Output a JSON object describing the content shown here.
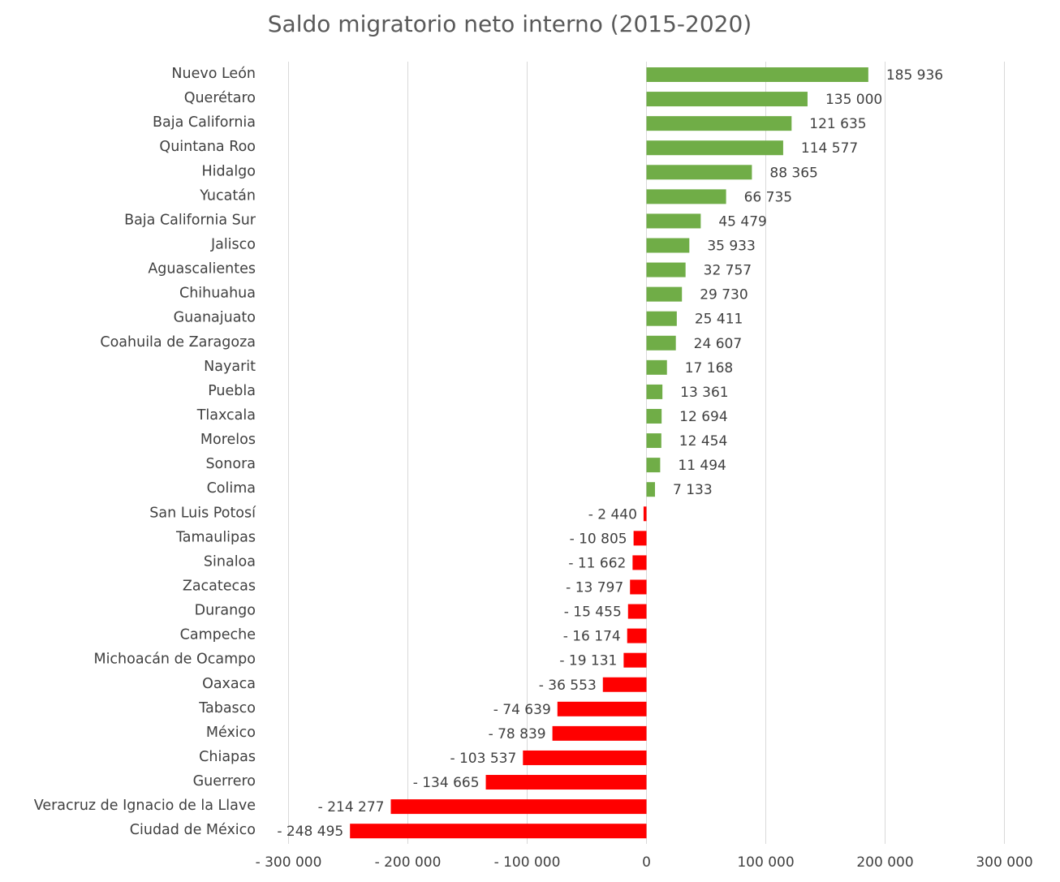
{
  "chart_data": {
    "type": "bar",
    "orientation": "horizontal",
    "title": "Saldo migratorio neto interno (2015-2020)",
    "xlabel": "",
    "ylabel": "",
    "xlim": [
      -300000,
      300000
    ],
    "grid": true,
    "legend": "none",
    "colors": {
      "positive": "#70ad47",
      "negative": "#ff0000"
    },
    "categories": [
      "Nuevo León",
      "Querétaro",
      "Baja California",
      "Quintana Roo",
      "Hidalgo",
      "Yucatán",
      "Baja California Sur",
      "Jalisco",
      "Aguascalientes",
      "Chihuahua",
      "Guanajuato",
      "Coahuila de Zaragoza",
      "Nayarit",
      "Puebla",
      "Tlaxcala",
      "Morelos",
      "Sonora",
      "Colima",
      "San Luis Potosí",
      "Tamaulipas",
      "Sinaloa",
      "Zacatecas",
      "Durango",
      "Campeche",
      "Michoacán de Ocampo",
      "Oaxaca",
      "Tabasco",
      "México",
      "Chiapas",
      "Guerrero",
      "Veracruz de Ignacio de la Llave",
      "Ciudad de México"
    ],
    "values": [
      185936,
      135000,
      121635,
      114577,
      88365,
      66735,
      45479,
      35933,
      32757,
      29730,
      25411,
      24607,
      17168,
      13361,
      12694,
      12454,
      11494,
      7133,
      -2440,
      -10805,
      -11662,
      -13797,
      -15455,
      -16174,
      -19131,
      -36553,
      -74639,
      -78839,
      -103537,
      -134665,
      -214277,
      -248495
    ],
    "data_labels": [
      "185 936",
      "135 000",
      "121 635",
      "114 577",
      "88 365",
      "66 735",
      "45 479",
      "35 933",
      "32 757",
      "29 730",
      "25 411",
      "24 607",
      "17 168",
      "13 361",
      "12 694",
      "12 454",
      "11 494",
      "7 133",
      "-  2 440",
      "-  10 805",
      "-  11 662",
      "-  13 797",
      "-  15 455",
      "-  16 174",
      "-  19 131",
      "-  36 553",
      "-  74 639",
      "-  78 839",
      "-  103 537",
      "-  134 665",
      "-  214 277",
      "-  248 495"
    ],
    "x_ticks": [
      -300000,
      -200000,
      -100000,
      0,
      100000,
      200000,
      300000
    ],
    "x_tick_labels": [
      "-  300 000",
      "-  200 000",
      "-  100 000",
      "0",
      "100 000",
      "200 000",
      "300 000"
    ]
  }
}
